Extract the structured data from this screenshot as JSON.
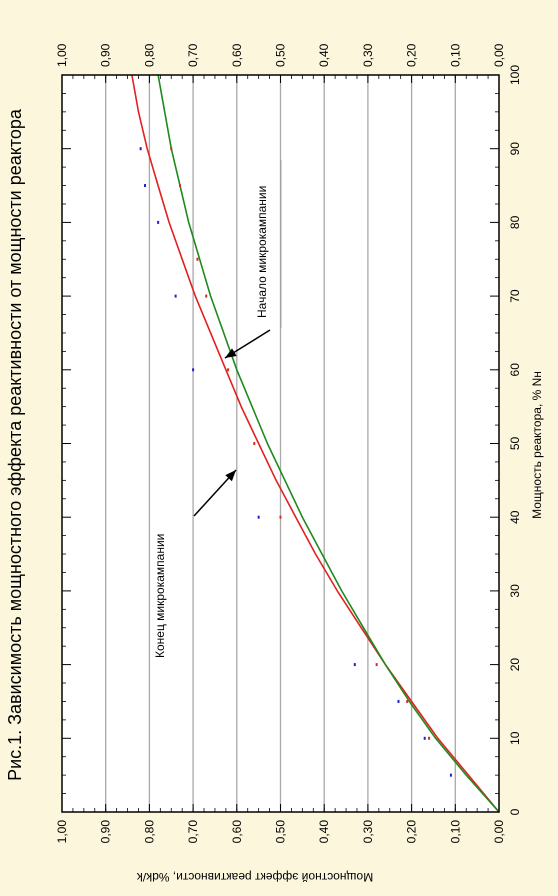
{
  "chart_data": {
    "type": "line",
    "title": "Рис.1. Зависимость мощностного эффекта реактивности от мощности реактора",
    "xlabel": "Мощность реактора, % Nн",
    "ylabel": "Мощностной эффект реактивности, %dk/k",
    "xlim": [
      0,
      100
    ],
    "ylim": [
      0,
      1
    ],
    "x_ticks": [
      "0",
      "10",
      "20",
      "30",
      "40",
      "50",
      "60",
      "70",
      "80",
      "90",
      "100"
    ],
    "y_ticks": [
      "0,00",
      "0,10",
      "0,20",
      "0,30",
      "0,40",
      "0,50",
      "0,60",
      "0,70",
      "0,80",
      "0,90",
      "1,00"
    ],
    "grid": "horizontal",
    "orientation": "rotated-90-ccw",
    "series": [
      {
        "color": "#e32020",
        "curve_x": [
          0,
          5,
          10,
          15,
          20,
          25,
          30,
          35,
          40,
          45,
          50,
          55,
          60,
          65,
          70,
          75,
          80,
          85,
          90,
          95,
          100
        ],
        "curve_y": [
          0.0,
          0.07,
          0.14,
          0.2,
          0.26,
          0.315,
          0.37,
          0.42,
          0.465,
          0.51,
          0.55,
          0.59,
          0.625,
          0.66,
          0.695,
          0.725,
          0.755,
          0.78,
          0.805,
          0.825,
          0.84
        ],
        "points_x": [
          5,
          10,
          15,
          20,
          40,
          60,
          70,
          80,
          85,
          90
        ],
        "points_y": [
          0.11,
          0.17,
          0.23,
          0.33,
          0.55,
          0.7,
          0.74,
          0.78,
          0.81,
          0.82
        ]
      },
      {
        "color": "#1e8a1e",
        "curve_x": [
          0,
          5,
          10,
          15,
          20,
          25,
          30,
          35,
          40,
          45,
          50,
          55,
          60,
          65,
          70,
          75,
          80,
          85,
          90,
          95,
          100
        ],
        "curve_y": [
          0.0,
          0.075,
          0.145,
          0.205,
          0.26,
          0.31,
          0.36,
          0.405,
          0.45,
          0.49,
          0.53,
          0.565,
          0.6,
          0.63,
          0.66,
          0.685,
          0.71,
          0.73,
          0.75,
          0.765,
          0.78
        ],
        "points_x": [
          10,
          15,
          20,
          40,
          50,
          60,
          70,
          75,
          85,
          90
        ],
        "points_y": [
          0.16,
          0.21,
          0.28,
          0.5,
          0.56,
          0.62,
          0.67,
          0.69,
          0.73,
          0.75
        ]
      }
    ],
    "annotations": [
      {
        "text": "Начало микрокампании",
        "x": 62,
        "y": 0.62
      },
      {
        "text": "Конец микрокампании",
        "x": 46,
        "y": 0.6
      }
    ]
  }
}
